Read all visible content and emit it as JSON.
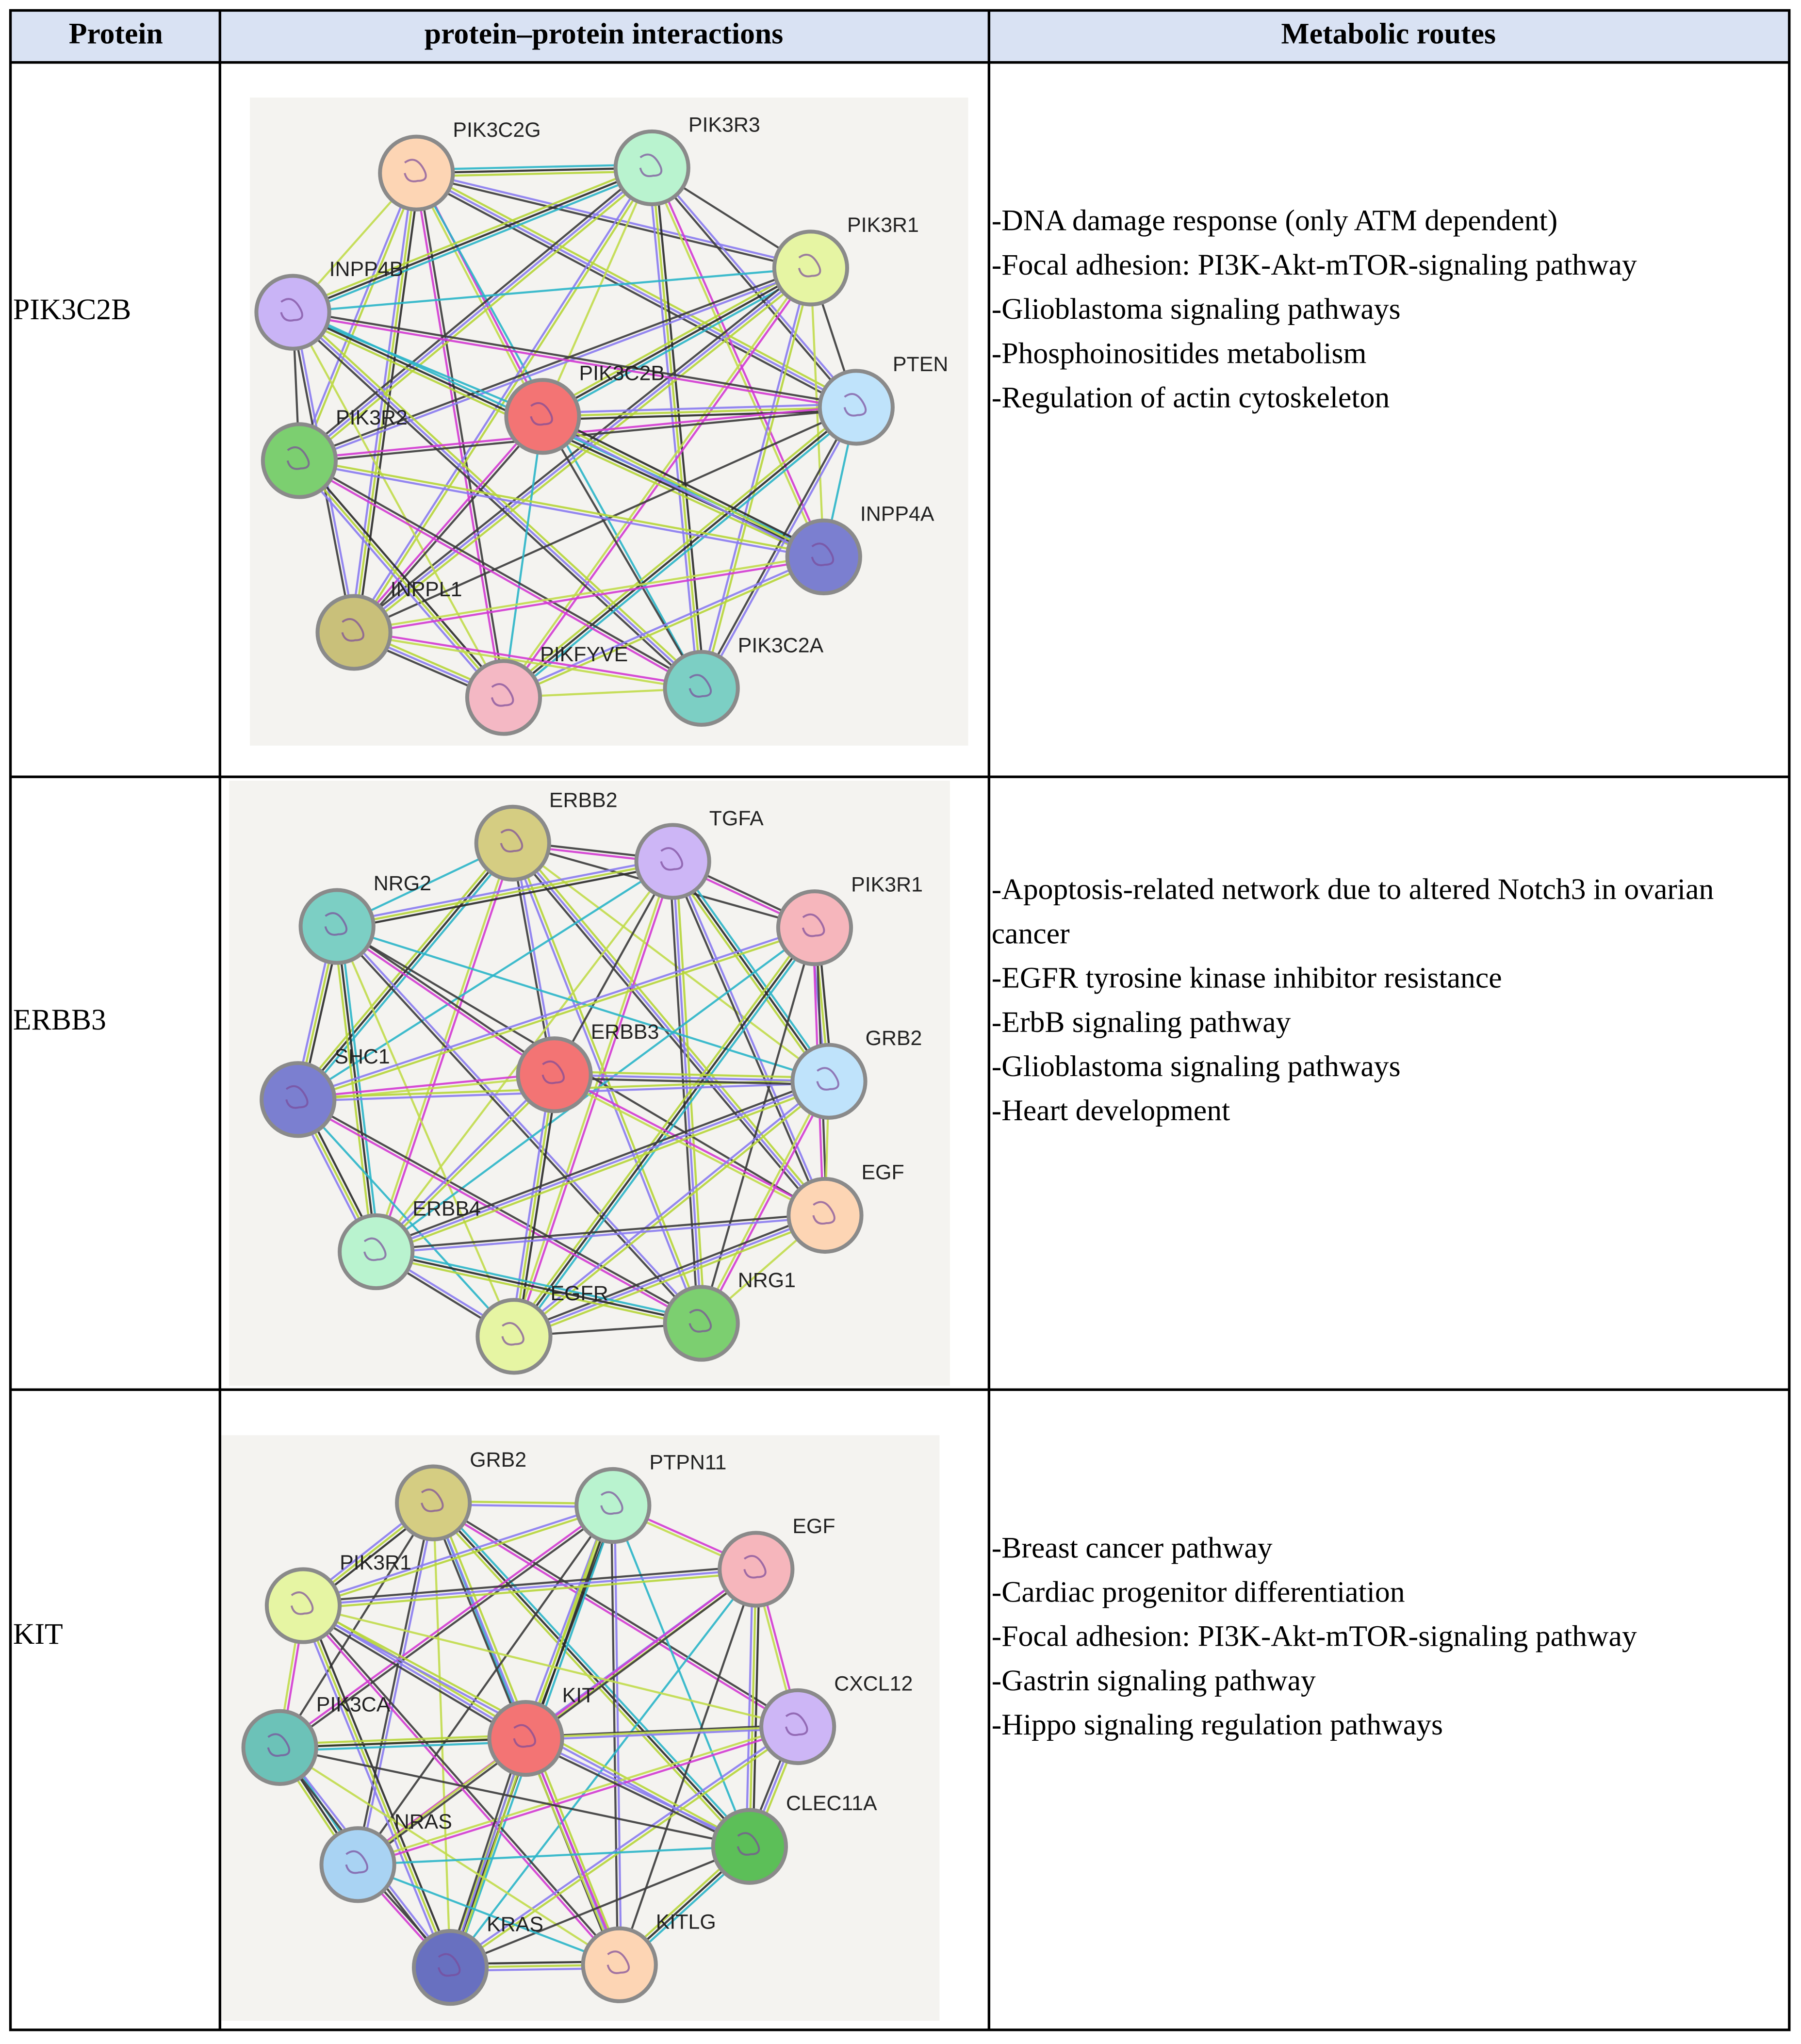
{
  "header": [
    "Protein",
    "protein–protein interactions",
    "Metabolic routes"
  ],
  "rows": [
    {
      "protein": "PIK3C2B",
      "nodes": [
        "PIK3C2G",
        "PIK3R3",
        "PIK3R1",
        "INPP4B",
        "PTEN",
        "PIK3C2B",
        "PIK3R2",
        "INPP4A",
        "INPPL1",
        "PIKFYVE",
        "PIK3C2A"
      ],
      "routes": [
        "-DNA damage response (only ATM dependent)",
        "-Focal adhesion: PI3K-Akt-mTOR-signaling pathway",
        "-Glioblastoma signaling pathways",
        "-Phosphoinositides metabolism",
        "-Regulation of actin cytoskeleton"
      ]
    },
    {
      "protein": "ERBB3",
      "nodes": [
        "ERBB2",
        "TGFA",
        "NRG2",
        "PIK3R1",
        "SHC1",
        "ERBB3",
        "GRB2",
        "EGF",
        "ERBB4",
        "NRG1",
        "EGFR"
      ],
      "routes": [
        "-Apoptosis-related network due to altered Notch3 in ovarian cancer",
        "-EGFR tyrosine kinase inhibitor resistance",
        "-ErbB signaling pathway",
        "-Glioblastoma signaling pathways",
        "-Heart development"
      ]
    },
    {
      "protein": "KIT",
      "nodes": [
        "GRB2",
        "PTPN11",
        "EGF",
        "PIK3R1",
        "CXCL12",
        "KIT",
        "PIK3CA",
        "CLEC11A",
        "NRAS",
        "KRAS",
        "KITLG"
      ],
      "routes": [
        "-Breast cancer pathway",
        "-Cardiac progenitor differentiation",
        "-Focal adhesion: PI3K-Akt-mTOR-signaling pathway",
        "-Gastrin signaling pathway",
        "-Hippo signaling regulation pathways"
      ]
    }
  ]
}
